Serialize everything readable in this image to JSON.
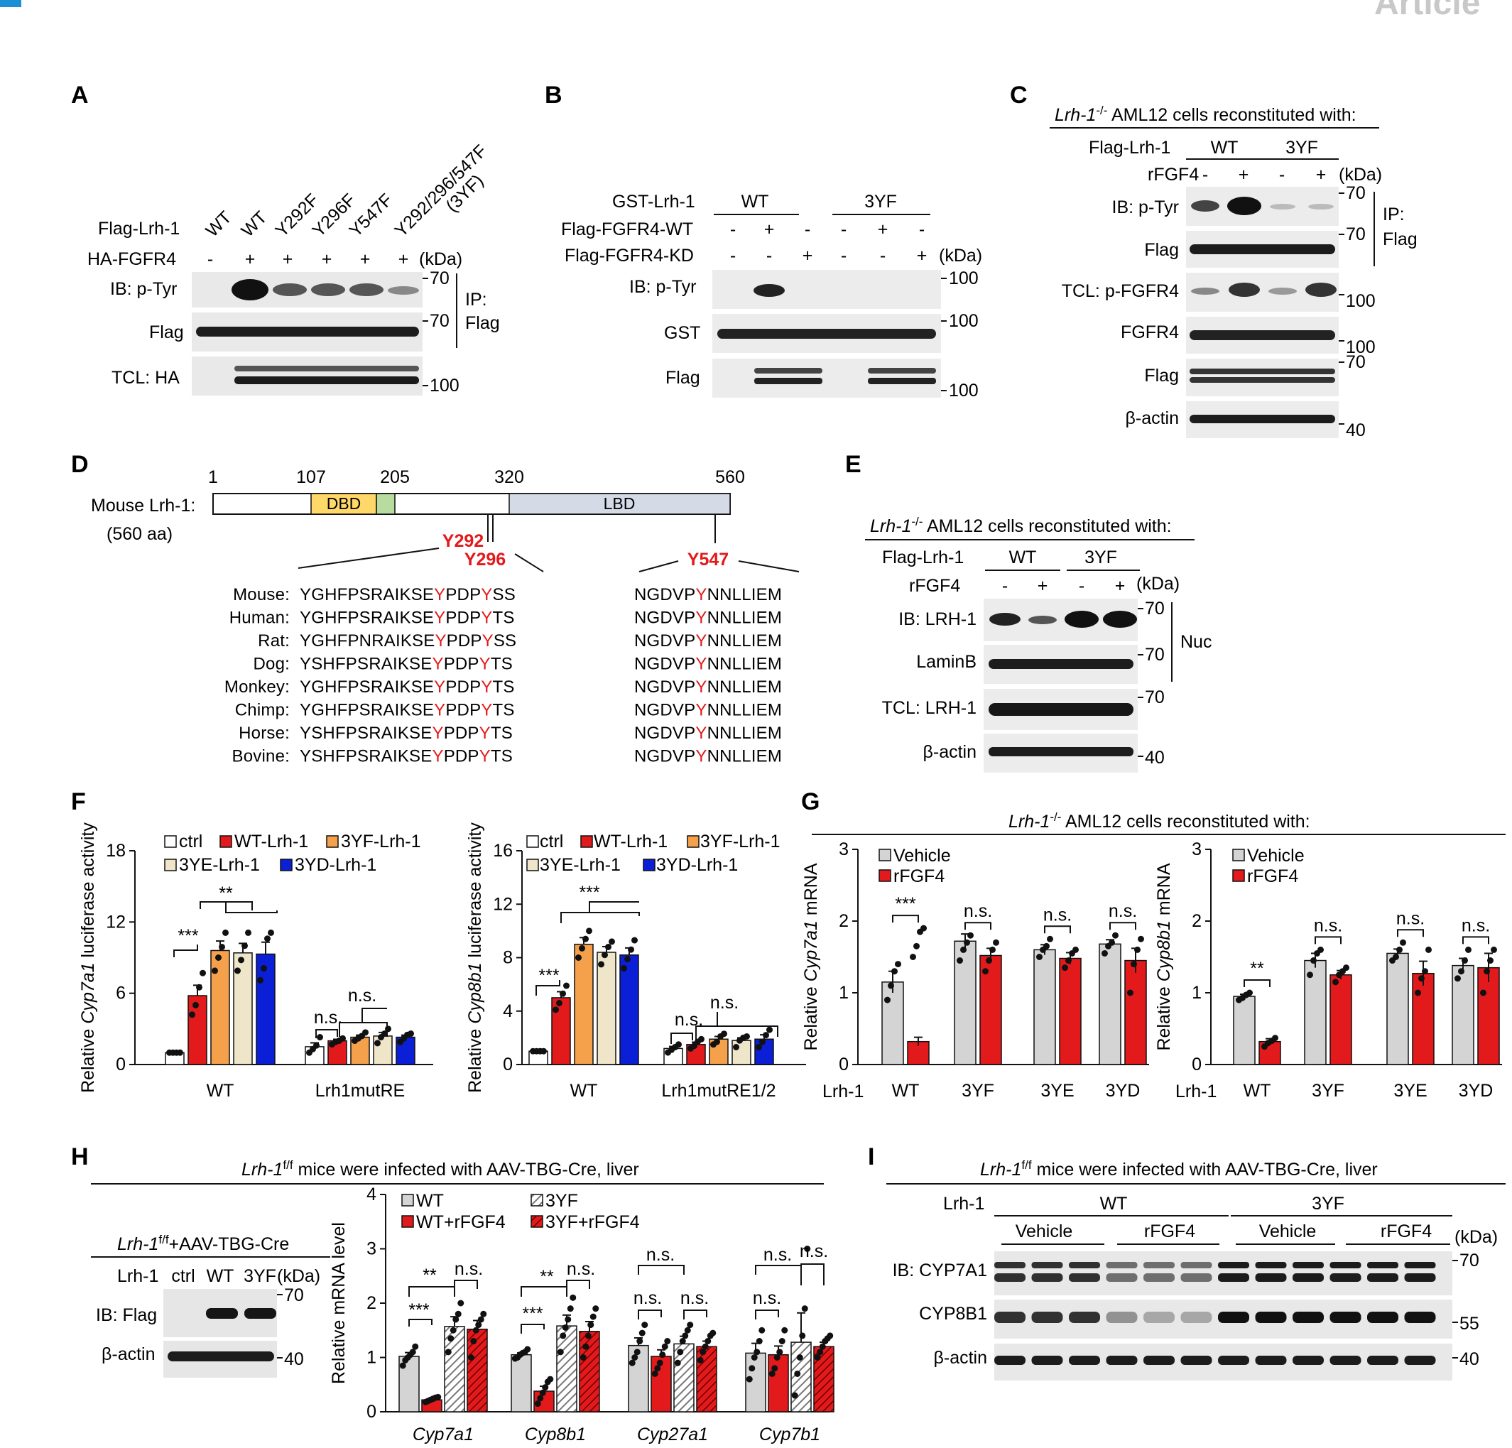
{
  "header": {
    "journal_tag": "Article",
    "accent": "#1a8fd6"
  },
  "colors": {
    "red": "#e31a1c",
    "orange": "#f5a04a",
    "cream": "#efe6c9",
    "blue": "#0a1fd6",
    "gray": "#d4d4d4",
    "white": "#ffffff"
  },
  "panelA": {
    "letter": "A",
    "lane_labels": [
      "WT",
      "WT",
      "Y292F",
      "Y296F",
      "Y547F",
      "Y292/296/547F",
      "(3YF)"
    ],
    "row_flag": "Flag-Lrh-1",
    "row_ha": "HA-FGFR4",
    "ha_signs": [
      "-",
      "+",
      "+",
      "+",
      "+",
      "+"
    ],
    "kda": "(kDa)",
    "blots": [
      "IB: p-Tyr",
      "Flag",
      "TCL: HA"
    ],
    "markers": [
      "70",
      "70",
      "100"
    ],
    "ip": [
      "IP:",
      "Flag"
    ]
  },
  "panelB": {
    "letter": "B",
    "row_gst": "GST-Lrh-1",
    "groups": [
      "WT",
      "3YF"
    ],
    "row_wt": "Flag-FGFR4-WT",
    "row_kd": "Flag-FGFR4-KD",
    "wt_signs": [
      "-",
      "+",
      "-",
      "-",
      "+",
      "-"
    ],
    "kd_signs": [
      "-",
      "-",
      "+",
      "-",
      "-",
      "+"
    ],
    "kda": "(kDa)",
    "blots": [
      "IB: p-Tyr",
      "GST",
      "Flag"
    ],
    "markers": [
      "100",
      "100",
      "100"
    ]
  },
  "panelC": {
    "letter": "C",
    "title_gene": "Lrh-1",
    "title_sup": "-/-",
    "title_rest": " AML12 cells reconstituted with:",
    "row_flag": "Flag-Lrh-1",
    "groups": [
      "WT",
      "3YF"
    ],
    "row_fgf": "rFGF4",
    "signs": [
      "-",
      "+",
      "-",
      "+"
    ],
    "kda": "(kDa)",
    "blots": [
      "IB: p-Tyr",
      "Flag",
      "TCL: p-FGFR4",
      "FGFR4",
      "Flag",
      "β-actin"
    ],
    "markers": [
      "70",
      "70",
      "100",
      "100",
      "70",
      "40"
    ],
    "ip": [
      "IP:",
      "Flag"
    ]
  },
  "panelD": {
    "letter": "D",
    "positions": [
      "1",
      "107",
      "205",
      "320",
      "560"
    ],
    "protein": "Mouse Lrh-1:",
    "length": "(560 aa)",
    "domains": [
      "DBD",
      "LBD"
    ],
    "sites": [
      "Y292",
      "Y296",
      "Y547"
    ],
    "species": [
      "Mouse:",
      "Human:",
      "Rat:",
      "Dog:",
      "Monkey:",
      "Chimp:",
      "Horse:",
      "Bovine:"
    ],
    "seq1": [
      [
        "YGHFPSRAIKSE",
        "Y",
        "PDP",
        "Y",
        "SS"
      ],
      [
        "YGHFPSRAIKSE",
        "Y",
        "PDP",
        "Y",
        "TS"
      ],
      [
        "YGHFPNRAIKSE",
        "Y",
        "PDP",
        "Y",
        "SS"
      ],
      [
        "YSHFPSRAIKSE",
        "Y",
        "PDP",
        "Y",
        "TS"
      ],
      [
        "YGHFPSRAIKSE",
        "Y",
        "PDP",
        "Y",
        "TS"
      ],
      [
        "YGHFPSRAIKSE",
        "Y",
        "PDP",
        "Y",
        "TS"
      ],
      [
        "YSHFPSRAIKSE",
        "Y",
        "PDP",
        "Y",
        "TS"
      ],
      [
        "YSHFPSRAIKSE",
        "Y",
        "PDP",
        "Y",
        "TS"
      ]
    ],
    "seq2": [
      [
        "NGDVP",
        "Y",
        "NNLLIEM"
      ],
      [
        "NGDVP",
        "Y",
        "NNLLIEM"
      ],
      [
        "NGDVP",
        "Y",
        "NNLLIEM"
      ],
      [
        "NGDVP",
        "Y",
        "NNLLIEM"
      ],
      [
        "NGDVP",
        "Y",
        "NNLLIEM"
      ],
      [
        "NGDVP",
        "Y",
        "NNLLIEM"
      ],
      [
        "NGDVP",
        "Y",
        "NNLLIEM"
      ],
      [
        "NGDVP",
        "Y",
        "NNLLIEM"
      ]
    ]
  },
  "panelE": {
    "letter": "E",
    "title_gene": "Lrh-1",
    "title_sup": "-/-",
    "title_rest": " AML12 cells reconstituted with:",
    "row_flag": "Flag-Lrh-1",
    "groups": [
      "WT",
      "3YF"
    ],
    "row_fgf": "rFGF4",
    "signs": [
      "-",
      "+",
      "-",
      "+"
    ],
    "kda": "(kDa)",
    "blots": [
      "IB: LRH-1",
      "LaminB",
      "TCL: LRH-1",
      "β-actin"
    ],
    "markers": [
      "70",
      "70",
      "70",
      "40"
    ],
    "nuc": "Nuc"
  },
  "panelF": {
    "letter": "F",
    "legend": [
      "ctrl",
      "WT-Lrh-1",
      "3YF-Lrh-1",
      "3YE-Lrh-1",
      "3YD-Lrh-1"
    ]
  },
  "panelG": {
    "letter": "G",
    "title_gene": "Lrh-1",
    "title_sup": "-/-",
    "title_rest": " AML12 cells reconstituted with:",
    "legend": [
      "Vehicle",
      "rFGF4"
    ],
    "row_label": "Lrh-1"
  },
  "panelH": {
    "letter": "H",
    "title_gene": "Lrh-1",
    "title_sup": "f/f",
    "title_rest": " mice were infected with AAV-TBG-Cre, liver",
    "blot_title_gene": "Lrh-1",
    "blot_title_sup": "f/f",
    "blot_title_rest": "+AAV-TBG-Cre",
    "lanes_label": "Lrh-1",
    "lanes": [
      "ctrl",
      "WT",
      "3YF"
    ],
    "kda": "(kDa)",
    "blots": [
      "IB: Flag",
      "β-actin"
    ],
    "markers": [
      "70",
      "40"
    ],
    "legend": [
      "WT",
      "3YF",
      "WT+rFGF4",
      "3YF+rFGF4"
    ]
  },
  "panelI": {
    "letter": "I",
    "title_gene": "Lrh-1",
    "title_sup": "f/f",
    "title_rest": " mice were infected with AAV-TBG-Cre, liver",
    "row_label": "Lrh-1",
    "groups": [
      "WT",
      "3YF"
    ],
    "subgroups": [
      "Vehicle",
      "rFGF4",
      "Vehicle",
      "rFGF4"
    ],
    "kda": "(kDa)",
    "blots": [
      "IB: CYP7A1",
      "CYP8B1",
      "β-actin"
    ],
    "markers": [
      "70",
      "55",
      "40"
    ]
  },
  "chart_data": [
    {
      "id": "F1",
      "type": "bar",
      "title": "",
      "ylabel": "Relative Cyp7a1 luciferase activity",
      "ylim": [
        0,
        18
      ],
      "yticks": [
        0,
        6,
        12,
        18
      ],
      "groups": [
        "WT",
        "Lrh1mutRE"
      ],
      "series": [
        {
          "name": "ctrl",
          "values": [
            1.0,
            1.5
          ]
        },
        {
          "name": "WT-Lrh-1",
          "values": [
            5.8,
            2.0
          ]
        },
        {
          "name": "3YF-Lrh-1",
          "values": [
            9.6,
            2.3
          ]
        },
        {
          "name": "3YE-Lrh-1",
          "values": [
            9.4,
            2.4
          ]
        },
        {
          "name": "3YD-Lrh-1",
          "values": [
            9.3,
            2.3
          ]
        }
      ],
      "points": [
        [
          [
            1.0,
            1.0,
            1.0,
            1.0
          ],
          [
            4.2,
            5.0,
            6.5,
            7.7
          ],
          [
            7.9,
            9.0,
            9.9,
            11.1
          ],
          [
            7.9,
            8.8,
            10.0,
            11.1
          ],
          [
            7.1,
            8.1,
            10.6,
            11.1
          ]
        ],
        [
          [
            1.0,
            1.3,
            1.6,
            2.3
          ],
          [
            1.7,
            1.9,
            2.0,
            2.2
          ],
          [
            2.0,
            2.2,
            2.4,
            2.7
          ],
          [
            1.8,
            2.3,
            2.6,
            3.0
          ],
          [
            1.9,
            2.2,
            2.5,
            2.6
          ]
        ]
      ],
      "sig": [
        "***",
        "**",
        "n.s.",
        "n.s."
      ]
    },
    {
      "id": "F2",
      "type": "bar",
      "title": "",
      "ylabel": "Relative Cyp8b1 luciferase activity",
      "ylim": [
        0,
        16
      ],
      "yticks": [
        0,
        4,
        8,
        12,
        16
      ],
      "groups": [
        "WT",
        "Lrh1mutRE1/2"
      ],
      "series": [
        {
          "name": "ctrl",
          "values": [
            1.0,
            1.2
          ]
        },
        {
          "name": "WT-Lrh-1",
          "values": [
            5.0,
            1.5
          ]
        },
        {
          "name": "3YF-Lrh-1",
          "values": [
            9.0,
            1.9
          ]
        },
        {
          "name": "3YE-Lrh-1",
          "values": [
            8.4,
            1.8
          ]
        },
        {
          "name": "3YD-Lrh-1",
          "values": [
            8.2,
            1.9
          ]
        }
      ],
      "points": [
        [
          [
            1.0,
            1.0,
            1.0,
            1.0
          ],
          [
            4.1,
            4.6,
            5.3,
            5.9
          ],
          [
            8.0,
            8.7,
            9.4,
            10.0
          ],
          [
            7.5,
            8.2,
            8.8,
            9.2
          ],
          [
            7.2,
            7.9,
            8.6,
            9.3
          ]
        ],
        [
          [
            0.9,
            1.1,
            1.3,
            1.5
          ],
          [
            1.2,
            1.4,
            1.7,
            1.9
          ],
          [
            1.5,
            1.7,
            2.1,
            2.3
          ],
          [
            1.3,
            1.8,
            2.0,
            2.1
          ],
          [
            1.3,
            1.7,
            2.2,
            2.6
          ]
        ]
      ],
      "sig": [
        "***",
        "***",
        "n.s.",
        "n.s."
      ]
    },
    {
      "id": "G1",
      "type": "bar",
      "title": "",
      "ylabel": "Relative Cyp7a1 mRNA",
      "ylim": [
        0,
        3
      ],
      "yticks": [
        0,
        1,
        2,
        3
      ],
      "groups": [
        "WT",
        "3YF",
        "3YE",
        "3YD"
      ],
      "series": [
        {
          "name": "Vehicle",
          "values": [
            1.15,
            1.72,
            1.6,
            1.68
          ]
        },
        {
          "name": "rFGF4",
          "values": [
            0.32,
            1.52,
            1.48,
            1.45
          ]
        }
      ],
      "points": [
        [
          [
            0.9,
            1.1,
            1.3,
            1.4
          ],
          [
            1.5,
            1.65,
            1.85,
            1.9
          ]
        ],
        [
          [
            1.45,
            1.6,
            1.7,
            1.8
          ],
          [
            1.3,
            1.45,
            1.6,
            1.7
          ]
        ],
        [
          [
            1.5,
            1.6,
            1.65,
            1.75
          ],
          [
            1.35,
            1.45,
            1.55,
            1.6
          ]
        ],
        [
          [
            1.55,
            1.65,
            1.7,
            1.8
          ],
          [
            1.0,
            1.4,
            1.6,
            1.75
          ]
        ]
      ],
      "errors": [
        [
          0.15,
          0.06
        ],
        [
          0.1,
          0.1
        ],
        [
          0.07,
          0.08
        ],
        [
          0.06,
          0.17
        ]
      ],
      "sig": [
        "***",
        "n.s.",
        "n.s.",
        "n.s."
      ]
    },
    {
      "id": "G2",
      "type": "bar",
      "title": "",
      "ylabel": "Relative Cyp8b1 mRNA",
      "ylim": [
        0,
        3
      ],
      "yticks": [
        0,
        1,
        2,
        3
      ],
      "groups": [
        "WT",
        "3YF",
        "3YE",
        "3YD"
      ],
      "series": [
        {
          "name": "Vehicle",
          "values": [
            0.95,
            1.45,
            1.55,
            1.38
          ]
        },
        {
          "name": "rFGF4",
          "values": [
            0.32,
            1.25,
            1.27,
            1.35
          ]
        }
      ],
      "points": [
        [
          [
            0.9,
            0.93,
            0.97,
            1.0
          ],
          [
            0.25,
            0.3,
            0.33,
            0.37
          ]
        ],
        [
          [
            1.25,
            1.45,
            1.55,
            1.6
          ],
          [
            1.15,
            1.25,
            1.3,
            1.35
          ]
        ],
        [
          [
            1.45,
            1.5,
            1.6,
            1.7
          ],
          [
            1.0,
            1.2,
            1.3,
            1.6
          ]
        ],
        [
          [
            1.2,
            1.3,
            1.45,
            1.6
          ],
          [
            1.0,
            1.3,
            1.45,
            1.6
          ]
        ]
      ],
      "errors": [
        [
          0.03,
          0.04
        ],
        [
          0.1,
          0.06
        ],
        [
          0.06,
          0.17
        ],
        [
          0.1,
          0.2
        ]
      ],
      "sig": [
        "**",
        "n.s.",
        "n.s.",
        "n.s."
      ]
    },
    {
      "id": "H",
      "type": "bar",
      "title": "",
      "ylabel": "Relative mRNA level",
      "ylim": [
        0,
        4
      ],
      "yticks": [
        0,
        1,
        2,
        3,
        4
      ],
      "groups": [
        "Cyp7a1",
        "Cyp8b1",
        "Cyp27a1",
        "Cyp7b1"
      ],
      "series": [
        {
          "name": "WT",
          "values": [
            1.02,
            1.05,
            1.22,
            1.08
          ]
        },
        {
          "name": "WT+rFGF4",
          "values": [
            0.22,
            0.38,
            1.02,
            1.05
          ]
        },
        {
          "name": "3YF",
          "values": [
            1.57,
            1.58,
            1.25,
            1.28
          ]
        },
        {
          "name": "3YF+rFGF4",
          "values": [
            1.52,
            1.48,
            1.2,
            1.2
          ]
        }
      ],
      "sig": [
        "***",
        "**",
        "n.s.",
        "***",
        "**",
        "n.s.",
        "n.s.",
        "n.s.",
        "n.s.",
        "n.s.",
        "n.s.",
        "n.s."
      ]
    }
  ]
}
